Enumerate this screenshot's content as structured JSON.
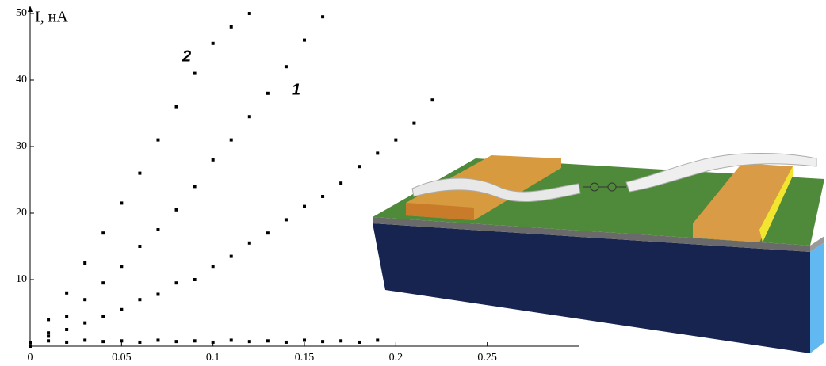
{
  "chart_data": {
    "type": "scatter",
    "y_label": "I, нА",
    "xlim": [
      0,
      0.3
    ],
    "ylim": [
      0,
      50
    ],
    "xticks": [
      0,
      0.05,
      0.1,
      0.15,
      0.2,
      0.25
    ],
    "yticks": [
      10,
      20,
      30,
      40,
      50
    ],
    "annotations": [
      "2",
      "1"
    ],
    "series": [
      {
        "color": "#000000",
        "x": [
          0,
          0.01,
          0.02,
          0.03,
          0.04,
          0.05,
          0.06,
          0.07,
          0.08,
          0.09,
          0.1,
          0.11,
          0.12
        ],
        "values": [
          0,
          4,
          8,
          12.5,
          17,
          21.5,
          26,
          31,
          36,
          41,
          45.5,
          48,
          50
        ]
      },
      {
        "color": "#000000",
        "x": [
          0,
          0.01,
          0.02,
          0.03,
          0.04,
          0.05,
          0.06,
          0.07,
          0.08,
          0.09,
          0.1,
          0.11,
          0.12,
          0.13,
          0.14,
          0.15,
          0.16
        ],
        "values": [
          0,
          2,
          4.5,
          7,
          9.5,
          12,
          15,
          17.5,
          20.5,
          24,
          28,
          31,
          34.5,
          38,
          42,
          46,
          49.5
        ]
      },
      {
        "color": "#000000",
        "x": [
          0,
          0.01,
          0.02,
          0.03,
          0.04,
          0.05,
          0.06,
          0.07,
          0.08,
          0.09,
          0.1,
          0.11,
          0.12,
          0.13,
          0.14,
          0.15,
          0.16,
          0.17,
          0.18,
          0.19,
          0.2,
          0.21,
          0.22
        ],
        "values": [
          0,
          1.5,
          2.5,
          3.5,
          4.5,
          5.5,
          7,
          7.8,
          9.5,
          10,
          12,
          13.5,
          15.5,
          17,
          19,
          21,
          22.5,
          24.5,
          27,
          29,
          31,
          33.5,
          37
        ]
      },
      {
        "color": "#000000",
        "x": [
          0,
          0.01,
          0.02,
          0.03,
          0.04,
          0.05,
          0.06,
          0.07,
          0.08,
          0.09,
          0.1,
          0.11,
          0.12,
          0.13,
          0.14,
          0.15,
          0.16,
          0.17,
          0.18,
          0.19
        ],
        "values": [
          0.5,
          0.8,
          0.6,
          0.9,
          0.7,
          0.8,
          0.6,
          0.9,
          0.7,
          0.8,
          0.6,
          0.9,
          0.7,
          0.8,
          0.6,
          0.9,
          0.7,
          0.8,
          0.6,
          0.9
        ]
      }
    ]
  }
}
